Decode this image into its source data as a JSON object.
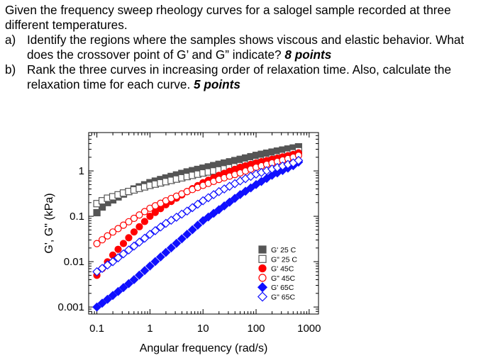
{
  "question": {
    "intro": "Given the frequency sweep rheology curves for a salogel sample recorded at three different temperatures.",
    "items": [
      {
        "label": "a)",
        "text": "Identify the regions where the samples shows viscous and elastic behavior. What does the crossover point of G’ and G” indicate?",
        "points": "8 points"
      },
      {
        "label": "b)",
        "text": "Rank the three curves in increasing order of relaxation time. Also, calculate the relaxation time for each curve.",
        "points": "5 points"
      }
    ]
  },
  "chart_data": {
    "type": "scatter",
    "xlabel": "Angular frequency (rad/s)",
    "ylabel": "G', G\" (kPa)",
    "xscale": "log",
    "yscale": "log",
    "xlim": [
      0.07,
      1500
    ],
    "ylim": [
      0.0007,
      7
    ],
    "xticks": [
      0.1,
      1,
      10,
      100,
      1000
    ],
    "xtick_labels": [
      "0.1",
      "1",
      "10",
      "100",
      "1000"
    ],
    "yticks": [
      0.001,
      0.01,
      0.1,
      1
    ],
    "ytick_labels": [
      "0.001",
      "0.01",
      "0.1",
      "1"
    ],
    "grid": false,
    "legend_position": "lower-right",
    "series": [
      {
        "name": "G' 25 C",
        "marker": "square",
        "filled": true,
        "color": "#555555",
        "x": [
          0.1,
          0.126,
          0.158,
          0.2,
          0.3,
          0.5,
          1,
          2,
          5,
          10,
          20,
          50,
          100,
          200,
          500,
          700
        ],
        "y": [
          0.12,
          0.16,
          0.2,
          0.23,
          0.3,
          0.4,
          0.55,
          0.7,
          0.95,
          1.15,
          1.4,
          1.8,
          2.2,
          2.6,
          3.2,
          3.5
        ]
      },
      {
        "name": "G\" 25 C",
        "marker": "square",
        "filled": false,
        "color": "#555555",
        "x": [
          0.1,
          0.126,
          0.158,
          0.2,
          0.3,
          0.5,
          1,
          2,
          5,
          10,
          20,
          50,
          100,
          200,
          500,
          700
        ],
        "y": [
          0.19,
          0.22,
          0.25,
          0.27,
          0.32,
          0.38,
          0.48,
          0.58,
          0.75,
          0.9,
          1.05,
          1.3,
          1.6,
          1.9,
          2.5,
          2.9
        ]
      },
      {
        "name": "G' 45C",
        "marker": "circle",
        "filled": true,
        "color": "#ff0000",
        "x": [
          0.1,
          0.2,
          0.5,
          1,
          2,
          5,
          10,
          20,
          50,
          100,
          200,
          500,
          700
        ],
        "y": [
          0.005,
          0.014,
          0.045,
          0.1,
          0.18,
          0.35,
          0.55,
          0.8,
          1.2,
          1.5,
          1.8,
          2.3,
          2.6
        ]
      },
      {
        "name": "G\" 45C",
        "marker": "circle",
        "filled": false,
        "color": "#ff0000",
        "x": [
          0.1,
          0.2,
          0.5,
          1,
          2,
          5,
          10,
          20,
          50,
          100,
          200,
          500,
          700
        ],
        "y": [
          0.025,
          0.045,
          0.09,
          0.15,
          0.22,
          0.35,
          0.48,
          0.65,
          0.9,
          1.2,
          1.5,
          2.0,
          2.3
        ]
      },
      {
        "name": "G' 65C",
        "marker": "diamond",
        "filled": true,
        "color": "#1010ff",
        "x": [
          0.1,
          0.2,
          0.5,
          1,
          2,
          5,
          10,
          20,
          50,
          100,
          200,
          500,
          700
        ],
        "y": [
          0.001,
          0.0018,
          0.004,
          0.008,
          0.016,
          0.04,
          0.08,
          0.14,
          0.3,
          0.5,
          0.8,
          1.3,
          1.7
        ]
      },
      {
        "name": "G\" 65C",
        "marker": "diamond",
        "filled": false,
        "color": "#1010ff",
        "x": [
          0.1,
          0.2,
          0.5,
          1,
          2,
          5,
          10,
          20,
          50,
          100,
          200,
          500,
          700
        ],
        "y": [
          0.006,
          0.01,
          0.022,
          0.04,
          0.07,
          0.13,
          0.22,
          0.35,
          0.6,
          0.85,
          1.1,
          1.5,
          1.8
        ]
      }
    ]
  }
}
